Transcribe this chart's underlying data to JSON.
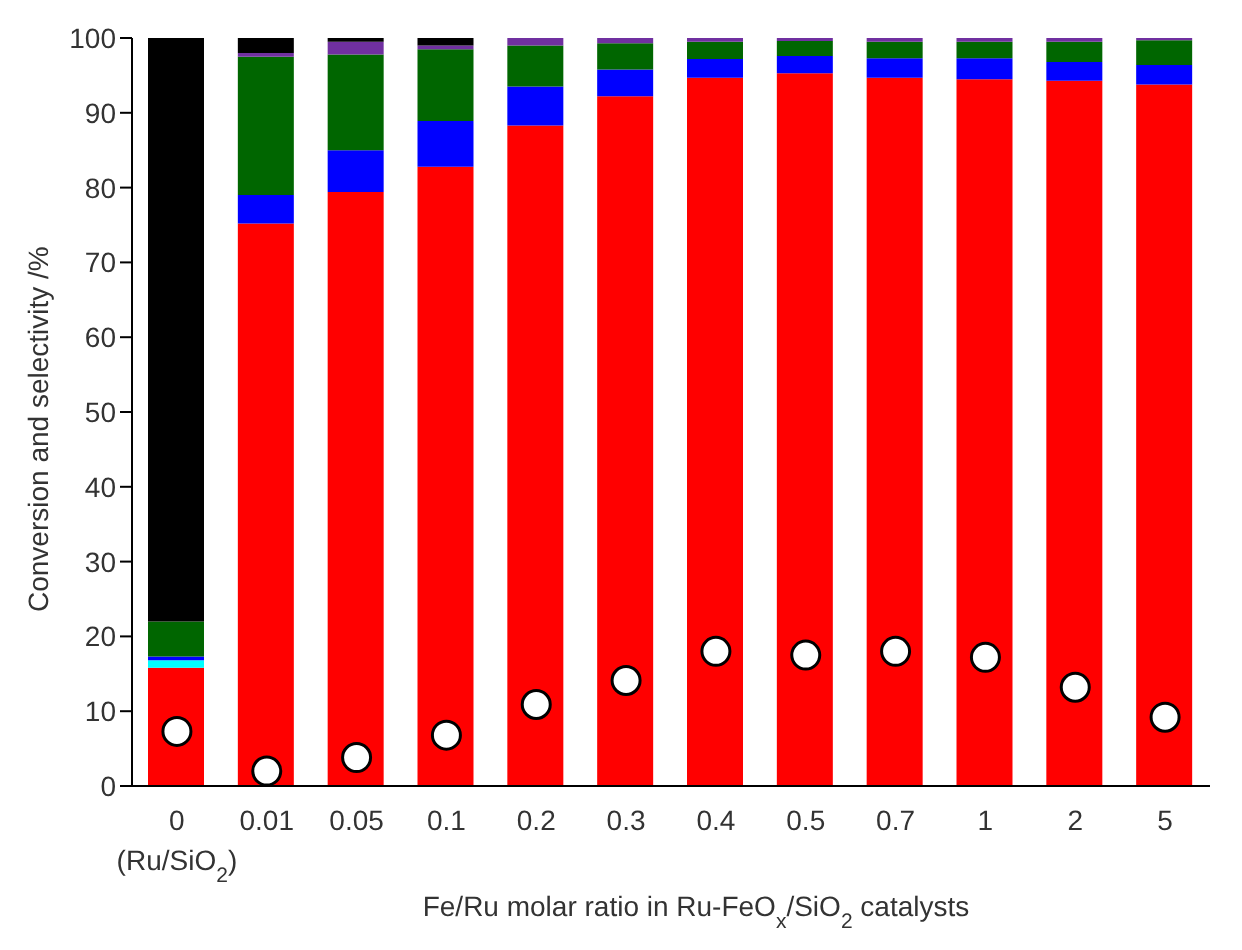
{
  "chart_data": {
    "type": "bar",
    "stacked": true,
    "xlabel": "Fe/Ru molar ratio in Ru-FeO$_{x}$/SiO$_{2}$ catalysts",
    "ylabel": "Conversion and selectivity /%",
    "categories": [
      "0\n(Ru/SiO$_{2}$)",
      "0.01",
      "0.05",
      "0.1",
      "0.2",
      "0.3",
      "0.4",
      "0.5",
      "0.7",
      "1",
      "2",
      "5"
    ],
    "ylim": [
      0,
      100
    ],
    "yticks": [
      0,
      10,
      20,
      30,
      40,
      50,
      60,
      70,
      80,
      90,
      100
    ],
    "grid": false,
    "series": [
      {
        "color": "#ff0000",
        "values": [
          15.8,
          75.2,
          79.4,
          82.8,
          88.3,
          92.2,
          94.7,
          95.3,
          94.7,
          94.5,
          94.3,
          93.8
        ]
      },
      {
        "color": "#00ffff",
        "values": [
          1.0,
          null,
          null,
          null,
          null,
          null,
          null,
          null,
          null,
          null,
          null,
          null
        ]
      },
      {
        "color": "#0000ff",
        "values": [
          0.5,
          3.8,
          5.6,
          6.1,
          5.2,
          3.6,
          2.5,
          2.3,
          2.6,
          2.8,
          2.5,
          2.6
        ]
      },
      {
        "color": "#006600",
        "values": [
          4.7,
          18.5,
          12.8,
          9.6,
          5.5,
          3.5,
          2.3,
          2.0,
          2.2,
          2.2,
          2.7,
          3.3
        ]
      },
      {
        "color": "#7030a0",
        "values": [
          null,
          0.5,
          1.7,
          0.5,
          1.0,
          0.7,
          0.5,
          0.4,
          0.5,
          0.5,
          0.5,
          0.3
        ]
      },
      {
        "color": "#000000",
        "values": [
          78.0,
          2.0,
          0.5,
          1.0,
          null,
          null,
          null,
          null,
          null,
          null,
          null,
          null
        ]
      },
      {
        "type": "scatter",
        "marker": "circle",
        "color": "#ffffff",
        "values": [
          7.3,
          2.0,
          3.8,
          6.8,
          10.9,
          14.1,
          18.0,
          17.5,
          18.0,
          17.2,
          13.2,
          9.2
        ]
      }
    ]
  }
}
